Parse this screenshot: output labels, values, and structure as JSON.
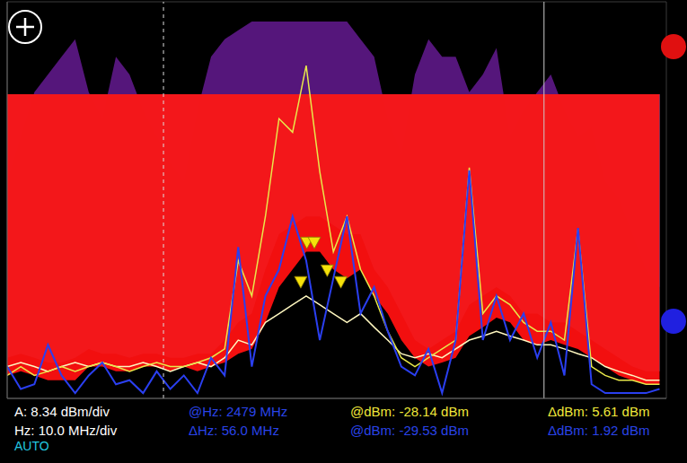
{
  "chart_data": {
    "type": "line",
    "grid": true,
    "tick_labels": false,
    "xlim": [
      2400,
      2497
    ],
    "xticks": [
      2400,
      2410,
      2420,
      2430,
      2440,
      2450,
      2460,
      2470,
      2480,
      2490
    ],
    "ylim": [
      -44.78,
      13.6
    ],
    "yticks": [
      -44.78,
      -36.44,
      -28.1,
      -19.76,
      -11.42,
      -3.08,
      5.26,
      13.6
    ],
    "x": [
      2400,
      2402,
      2404,
      2406,
      2408,
      2410,
      2412,
      2414,
      2416,
      2418,
      2420,
      2422,
      2424,
      2426,
      2428,
      2430,
      2432,
      2434,
      2436,
      2438,
      2440,
      2442,
      2444,
      2446,
      2448,
      2450,
      2452,
      2454,
      2456,
      2458,
      2460,
      2462,
      2464,
      2466,
      2468,
      2470,
      2472,
      2474,
      2476,
      2478,
      2480,
      2482,
      2484,
      2486,
      2488,
      2490,
      2492,
      2494,
      2496
    ],
    "series": [
      {
        "type": "area",
        "color": "#6a1b9a",
        "values": [
          -12.8,
          -6.2,
          0.3,
          2.9,
          5.5,
          8.1,
          0.3,
          -3.6,
          5.5,
          2.9,
          -2.3,
          -6.2,
          -10.1,
          -12.8,
          -2.3,
          5.5,
          8.1,
          9.4,
          10.7,
          10.7,
          10.7,
          10.7,
          10.7,
          10.7,
          10.7,
          10.7,
          8.1,
          5.5,
          -3.6,
          -8.8,
          2.9,
          8.1,
          5.5,
          5.5,
          0.3,
          2.9,
          6.8,
          -6.2,
          -2.3,
          0.3,
          2.9,
          -2.3,
          -6.2,
          -4.9,
          -12.8,
          -15.3,
          -20.5,
          -25.8,
          -28.4
        ]
      },
      {
        "type": "area",
        "color": "#1e9ee6",
        "values": [
          -38.8,
          -38.2,
          -38.8,
          -39.5,
          -39.5,
          -38.8,
          -37.5,
          -38.2,
          -38.2,
          -38.8,
          -38.2,
          -38.2,
          -38.8,
          -38.8,
          -38.2,
          -38.2,
          -36.2,
          -33.6,
          -32.3,
          -25.8,
          -20.6,
          -19.3,
          -18.0,
          -18.0,
          -19.3,
          -20.6,
          -20.6,
          -25.8,
          -28.4,
          -32.3,
          -36.2,
          -37.5,
          -36.2,
          -34.9,
          -31.0,
          -29.7,
          -28.4,
          -29.7,
          -32.3,
          -32.3,
          -33.6,
          -33.6,
          -34.9,
          -36.2,
          -37.5,
          -38.8,
          -40.1,
          -40.8,
          -40.8
        ]
      },
      {
        "type": "area",
        "color": "#ff1010",
        "values": [
          -41.4,
          -40.8,
          -41.4,
          -42.1,
          -42.1,
          -42.1,
          -40.1,
          -40.1,
          -40.8,
          -40.8,
          -40.1,
          -40.1,
          -40.8,
          -40.1,
          -40.8,
          -40.1,
          -39.5,
          -38.2,
          -37.5,
          -33.6,
          -28.4,
          -25.8,
          -23.2,
          -23.2,
          -25.8,
          -27.1,
          -25.8,
          -29.7,
          -32.3,
          -36.2,
          -38.8,
          -40.1,
          -39.5,
          -38.8,
          -35.6,
          -34.3,
          -32.9,
          -33.6,
          -36.2,
          -36.9,
          -36.2,
          -36.9,
          -37.5,
          -38.8,
          -40.1,
          -41.4,
          -42.1,
          -42.7,
          -42.7
        ]
      },
      {
        "type": "line",
        "color": "#fff8c0",
        "values": [
          -40.1,
          -39.5,
          -40.1,
          -40.8,
          -40.1,
          -39.5,
          -40.1,
          -39.5,
          -40.1,
          -40.1,
          -39.5,
          -40.1,
          -40.8,
          -40.1,
          -39.5,
          -40.1,
          -38.8,
          -36.2,
          -36.9,
          -33.6,
          -32.3,
          -31.0,
          -29.7,
          -31.0,
          -32.3,
          -33.6,
          -32.3,
          -34.3,
          -36.2,
          -38.2,
          -38.8,
          -38.2,
          -38.8,
          -37.5,
          -36.2,
          -35.6,
          -34.9,
          -35.6,
          -36.2,
          -36.9,
          -36.9,
          -37.5,
          -38.2,
          -38.8,
          -40.1,
          -40.8,
          -41.4,
          -42.1,
          -42.1
        ]
      },
      {
        "type": "line",
        "color": "#e8e84a",
        "values": [
          -41.4,
          -40.1,
          -41.4,
          -40.8,
          -40.1,
          -40.8,
          -40.1,
          -39.5,
          -40.1,
          -40.8,
          -40.1,
          -39.5,
          -40.1,
          -40.1,
          -39.5,
          -38.8,
          -37.5,
          -24.5,
          -29.7,
          -18.0,
          -3.6,
          -5.6,
          4.2,
          -11.4,
          -23.2,
          -18.0,
          -25.8,
          -29.7,
          -34.9,
          -38.8,
          -40.1,
          -38.8,
          -37.5,
          -36.2,
          -10.8,
          -32.3,
          -29.7,
          -31.0,
          -33.6,
          -34.9,
          -34.9,
          -36.2,
          -19.9,
          -40.1,
          -41.4,
          -42.1,
          -42.1,
          -42.7,
          -42.7
        ]
      },
      {
        "type": "line",
        "color": "#2a3ff0",
        "values": [
          -40.1,
          -43.4,
          -42.7,
          -36.9,
          -41.4,
          -44.0,
          -41.4,
          -39.5,
          -42.7,
          -42.1,
          -44.0,
          -40.8,
          -43.4,
          -41.4,
          -44.0,
          -38.8,
          -41.4,
          -22.5,
          -40.1,
          -29.7,
          -25.8,
          -18.0,
          -24.5,
          -36.2,
          -27.1,
          -18.0,
          -32.3,
          -28.4,
          -34.9,
          -40.1,
          -41.4,
          -37.5,
          -44.0,
          -36.2,
          -11.2,
          -36.2,
          -29.7,
          -36.2,
          -32.3,
          -38.8,
          -33.6,
          -41.4,
          -19.7,
          -42.7,
          -44.0,
          -44.0,
          -44.0,
          -44.0,
          -43.4
        ]
      }
    ],
    "cursors": [
      {
        "x": 2423,
        "color": "#dddddd",
        "line_style": "dashed"
      },
      {
        "x": 2479,
        "color": "#cccccc",
        "line_style": "solid"
      }
    ],
    "markers": {
      "x": [
        2444.1,
        2445.2,
        2443.2,
        2447.1,
        2449.1
      ],
      "y": [
        -22.1,
        -22.1,
        -27.9,
        -26.2,
        -27.9
      ],
      "color": "#f5e10a",
      "marker": "triangle-down"
    },
    "readouts": [
      [
        {
          "text": "A: 8.34 dBm/div",
          "color": "#ffffff"
        },
        {
          "text": "Hz: 10.0 MHz/div",
          "color": "#ffffff"
        },
        {
          "text": "AUTO",
          "color": "#22c8e0"
        }
      ],
      [
        {
          "text": "@Hz: 2479 MHz",
          "color": "#2a44e8"
        },
        {
          "text": "ΔHz: 56.0 MHz",
          "color": "#2a44e8"
        }
      ],
      [
        {
          "text": "@dBm: -28.14 dBm",
          "color": "#f0e83a"
        },
        {
          "text": "@dBm: -29.53 dBm",
          "color": "#2a44e8"
        }
      ],
      [
        {
          "text": "ΔdBm: 5.61 dBm",
          "color": "#f0e83a"
        },
        {
          "text": "ΔdBm: 1.92 dBm",
          "color": "#2a44e8"
        }
      ]
    ]
  }
}
